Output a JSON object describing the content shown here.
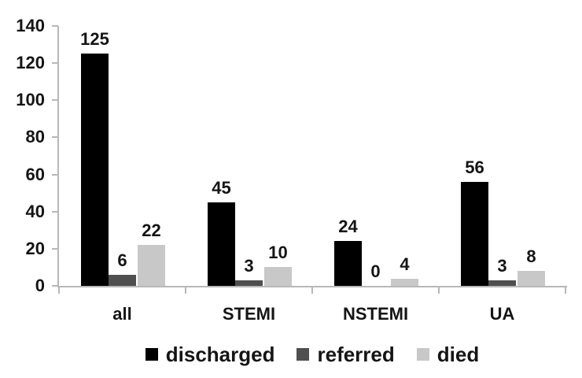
{
  "figure": {
    "background": "#ffffff"
  },
  "chart_data": {
    "type": "bar",
    "title": "",
    "xlabel": "",
    "ylabel": "",
    "categories": [
      "all",
      "STEMI",
      "NSTEMI",
      "UA"
    ],
    "series": [
      {
        "name": "discharged",
        "color": "#000000",
        "values": [
          125,
          45,
          24,
          56
        ]
      },
      {
        "name": "referred",
        "color": "#4f4f4f",
        "values": [
          6,
          3,
          0,
          3
        ]
      },
      {
        "name": "died",
        "color": "#c8c8c8",
        "values": [
          22,
          10,
          4,
          8
        ]
      }
    ],
    "ylim": [
      0,
      140
    ],
    "yticks": [
      0,
      20,
      40,
      60,
      80,
      100,
      120,
      140
    ],
    "grid": false,
    "legend_position": "bottom",
    "bar_value_labels": true,
    "axis_color": "#b8b8b8",
    "text_color": "#151515"
  }
}
